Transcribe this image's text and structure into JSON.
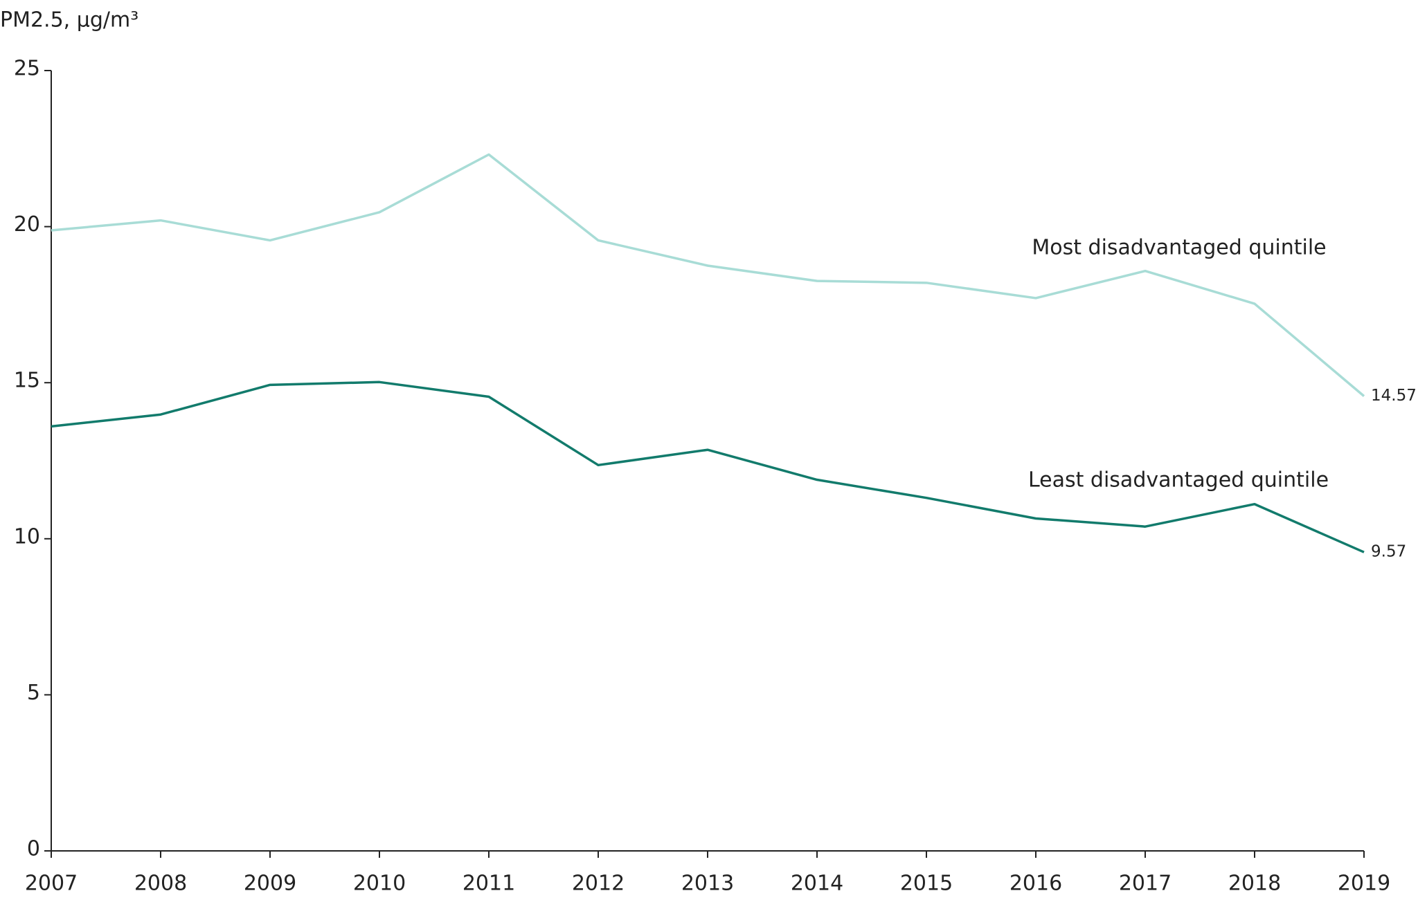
{
  "chart_data": {
    "type": "line",
    "y_label": "PM2.5, μg/m³",
    "x": [
      2007,
      2008,
      2009,
      2010,
      2011,
      2012,
      2013,
      2014,
      2015,
      2016,
      2017,
      2018,
      2019
    ],
    "series": [
      {
        "name": "Most disadvantaged quintile",
        "color": "#a8dcd6",
        "values": [
          19.88,
          20.2,
          19.56,
          20.46,
          22.31,
          19.56,
          18.75,
          18.26,
          18.2,
          17.71,
          18.58,
          17.53,
          14.57
        ]
      },
      {
        "name": "Least disadvantaged quintile",
        "color": "#127b6c",
        "values": [
          13.6,
          13.98,
          14.93,
          15.02,
          14.55,
          12.36,
          12.85,
          11.89,
          11.31,
          10.65,
          10.39,
          11.11,
          9.57
        ]
      }
    ],
    "xlim": [
      2007,
      2019
    ],
    "xticks": [
      2007,
      2008,
      2009,
      2010,
      2011,
      2012,
      2013,
      2014,
      2015,
      2016,
      2017,
      2018,
      2019
    ],
    "ylim": [
      0,
      25
    ],
    "yticks": [
      0,
      5,
      10,
      15,
      20,
      25
    ]
  }
}
